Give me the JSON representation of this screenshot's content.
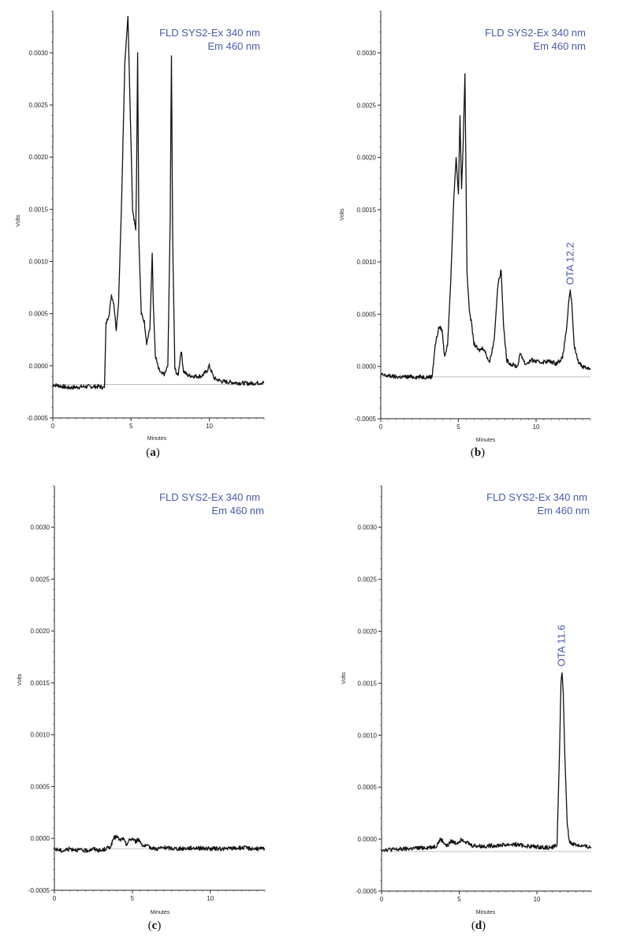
{
  "chart_data": [
    {
      "id": "a",
      "type": "line",
      "caption_letter": "a",
      "detector_label_line1": "FLD SYS2-Ex 340 nm",
      "detector_label_line2": "Em 460 nm",
      "xlabel": "Minutes",
      "ylabel": "Volts",
      "xlim": [
        0,
        13.5
      ],
      "ylim": [
        -0.0005,
        0.0034
      ],
      "x_ticks": [
        "0",
        "5",
        "10"
      ],
      "y_ticks": [
        "0.0030",
        "0.0025",
        "0.0020",
        "0.0015",
        "0.0010",
        "0.0005",
        "0.0000",
        "-0.0005"
      ],
      "baseline_level": -0.00018,
      "peak_annotations": [],
      "series": [
        {
          "x": [
            0,
            1,
            2,
            3,
            3.3,
            3.4,
            3.5,
            3.6,
            3.75,
            3.9,
            4.05,
            4.2,
            4.4,
            4.6,
            4.8,
            4.95,
            5.1,
            5.3,
            5.35,
            5.42,
            5.5,
            5.65,
            5.85,
            6.0,
            6.2,
            6.35,
            6.42,
            6.55,
            6.75,
            6.95,
            7.15,
            7.35,
            7.5,
            7.58,
            7.66,
            7.8,
            8.0,
            8.2,
            8.35,
            8.6,
            9.0,
            9.5,
            9.85,
            10.0,
            10.3,
            10.8,
            11.5,
            12.5,
            13.5
          ],
          "y": [
            -0.00018,
            -0.00021,
            -0.0002,
            -0.0002,
            -0.00021,
            0.0004,
            0.00045,
            0.0005,
            0.00068,
            0.0006,
            0.00035,
            0.0006,
            0.0016,
            0.0029,
            0.00335,
            0.0024,
            0.0015,
            0.0013,
            0.0018,
            0.003,
            0.0012,
            0.0005,
            0.00042,
            0.00022,
            0.00035,
            0.00108,
            0.0006,
            0.0001,
            -3e-05,
            -8e-05,
            -8e-05,
            0.0,
            0.0014,
            0.00297,
            0.0012,
            -3e-05,
            -0.0001,
            0.00015,
            -5e-05,
            -9e-05,
            -0.0001,
            -0.0001,
            -5e-05,
            0.0,
            -0.00012,
            -0.00015,
            -0.00016,
            -0.00017,
            -0.00016
          ]
        }
      ]
    },
    {
      "id": "b",
      "type": "line",
      "caption_letter": "b",
      "detector_label_line1": "FLD SYS2-Ex 340 nm",
      "detector_label_line2": "Em 460 nm",
      "xlabel": "Minutes",
      "ylabel": "Volts",
      "xlim": [
        0,
        13.5
      ],
      "ylim": [
        -0.0005,
        0.0034
      ],
      "x_ticks": [
        "0",
        "5",
        "10"
      ],
      "y_ticks": [
        "0.0030",
        "0.0025",
        "0.0020",
        "0.0015",
        "0.0010",
        "0.0005",
        "0.0000",
        "-0.0005"
      ],
      "baseline_level": -0.0001,
      "peak_annotations": [
        {
          "text": "OTA 12.2",
          "x": 12.2,
          "y": 0.00072
        }
      ],
      "series": [
        {
          "x": [
            0,
            1,
            2,
            3,
            3.3,
            3.5,
            3.75,
            3.95,
            4.1,
            4.3,
            4.5,
            4.7,
            4.85,
            5.0,
            5.1,
            5.2,
            5.3,
            5.42,
            5.55,
            5.7,
            5.85,
            6.0,
            6.3,
            6.6,
            7.0,
            7.3,
            7.55,
            7.75,
            7.9,
            8.1,
            8.4,
            8.8,
            9.0,
            9.3,
            9.7,
            10.2,
            10.8,
            11.3,
            11.7,
            11.95,
            12.1,
            12.2,
            12.3,
            12.45,
            12.7,
            13.0,
            13.5
          ],
          "y": [
            -8e-05,
            -0.0001,
            -0.0001,
            -0.0001,
            -0.0001,
            0.0002,
            0.00038,
            0.00035,
            0.0001,
            0.0002,
            0.0008,
            0.0016,
            0.002,
            0.00165,
            0.0024,
            0.0017,
            0.0021,
            0.0028,
            0.0009,
            0.00055,
            0.0004,
            0.00022,
            0.00015,
            0.00018,
            4e-05,
            0.00025,
            0.0008,
            0.00092,
            0.0004,
            6e-05,
            2e-05,
            0.0,
            0.00013,
            2e-05,
            6e-05,
            4e-05,
            5e-05,
            3e-05,
            8e-05,
            0.00035,
            0.0006,
            0.00072,
            0.0006,
            0.0002,
            5e-05,
            0.0,
            -2e-05
          ]
        }
      ]
    },
    {
      "id": "c",
      "type": "line",
      "caption_letter": "c",
      "detector_label_line1": "FLD SYS2-Ex 340 nm",
      "detector_label_line2": "Em 460 nm",
      "xlabel": "Minutes",
      "ylabel": "Volts",
      "xlim": [
        0,
        13.5
      ],
      "ylim": [
        -0.0005,
        0.0034
      ],
      "x_ticks": [
        "0",
        "5",
        "10"
      ],
      "y_ticks": [
        "0.0030",
        "0.0025",
        "0.0020",
        "0.0015",
        "0.0010",
        "0.0005",
        "0.0000",
        "-0.0005"
      ],
      "baseline_level": -0.0001,
      "peak_annotations": [],
      "series": [
        {
          "x": [
            0,
            0.5,
            1,
            1.5,
            2,
            2.5,
            3,
            3.3,
            3.6,
            3.8,
            4.0,
            4.2,
            4.4,
            4.6,
            4.8,
            5.0,
            5.2,
            5.4,
            5.7,
            6.0,
            6.5,
            7,
            8,
            9,
            10,
            11,
            12,
            13,
            13.5
          ],
          "y": [
            -0.0001,
            -0.00012,
            -0.0001,
            -0.00011,
            -0.00012,
            -0.0001,
            -0.00012,
            -0.0001,
            -8e-05,
            0.0,
            2e-05,
            -2e-05,
            0.0,
            -6e-05,
            -2e-05,
            0.0,
            -3e-05,
            -1e-05,
            -7e-05,
            -8e-05,
            -0.0001,
            -9e-05,
            -0.0001,
            -9e-05,
            -0.0001,
            -0.0001,
            -9e-05,
            -0.0001,
            -0.0001
          ]
        }
      ]
    },
    {
      "id": "d",
      "type": "line",
      "caption_letter": "d",
      "detector_label_line1": "FLD SYS2-Ex 340 nm",
      "detector_label_line2": "Em 460 nm",
      "xlabel": "Minutes",
      "ylabel": "Volts",
      "xlim": [
        0,
        13.5
      ],
      "ylim": [
        -0.0005,
        0.0034
      ],
      "x_ticks": [
        "0",
        "5",
        "10"
      ],
      "y_ticks": [
        "0.0030",
        "0.0025",
        "0.0020",
        "0.0015",
        "0.0010",
        "0.0005",
        "0.0000",
        "-0.0005"
      ],
      "baseline_level": -0.00012,
      "peak_annotations": [
        {
          "text": "OTA 11.6",
          "x": 11.6,
          "y": 0.0016
        }
      ],
      "series": [
        {
          "x": [
            0,
            1,
            2,
            3,
            3.5,
            3.8,
            4.0,
            4.2,
            4.5,
            4.8,
            5.2,
            5.5,
            5.8,
            6.5,
            7.5,
            8.5,
            9.5,
            10.5,
            11.0,
            11.3,
            11.45,
            11.55,
            11.62,
            11.7,
            11.8,
            11.95,
            12.1,
            12.4,
            13.0,
            13.5
          ],
          "y": [
            -0.0001,
            -0.0001,
            -9e-05,
            -8e-05,
            -7e-05,
            0.0,
            -3e-05,
            -7e-05,
            -2e-05,
            -4e-05,
            0.0,
            -3e-05,
            -6e-05,
            -7e-05,
            -6e-05,
            -5e-05,
            -7e-05,
            -8e-05,
            -8e-05,
            -5e-05,
            0.0008,
            0.0015,
            0.0016,
            0.0014,
            0.0008,
            0.00015,
            -3e-05,
            -5e-05,
            -7e-05,
            -8e-05
          ]
        }
      ]
    }
  ]
}
